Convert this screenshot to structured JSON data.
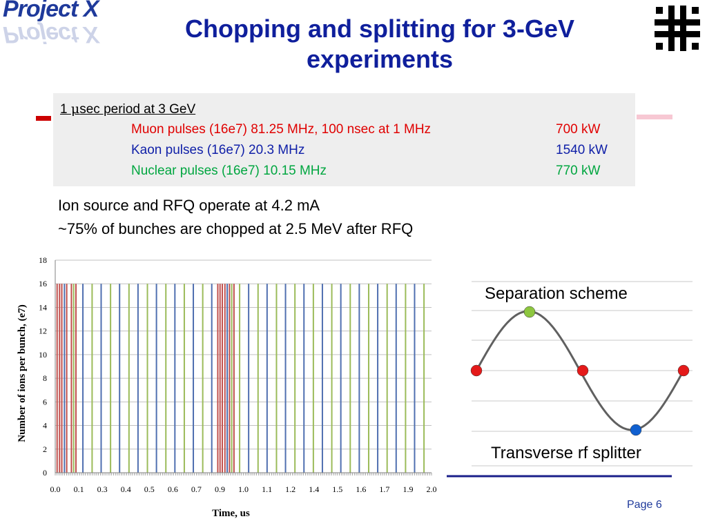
{
  "logo": {
    "text": "Project X",
    "reflection": "Project X"
  },
  "header": {
    "title_line1": "Chopping and splitting for 3-GeV",
    "title_line2": "experiments"
  },
  "info": {
    "header_prefix": "1 ",
    "header_mu": "μ",
    "header_rest": "sec period at 3 GeV",
    "rows": [
      {
        "desc": "Muon pulses (16e7) 81.25 MHz, 100 nsec at 1 MHz",
        "power": "700 kW",
        "color": "#e00000"
      },
      {
        "desc": "Kaon pulses (16e7) 20.3 MHz",
        "power": "1540 kW",
        "color": "#1020a8"
      },
      {
        "desc": "Nuclear pulses (16e7) 10.15 MHz",
        "power": "770 kW",
        "color": "#00a640"
      }
    ]
  },
  "body_text": {
    "line1": "Ion source and RFQ operate at 4.2 mA",
    "line2": "~75% of bunches are chopped at 2.5 MeV after RFQ"
  },
  "chart_data": {
    "type": "bar",
    "xlabel": "Time, us",
    "ylabel": "Number of ions per bunch, (e7)",
    "xlim": [
      0.0,
      2.0
    ],
    "ylim": [
      0,
      18
    ],
    "x_tick_labels": [
      "0.0",
      "0.1",
      "0.3",
      "0.4",
      "0.5",
      "0.6",
      "0.7",
      "0.9",
      "1.0",
      "1.1",
      "1.2",
      "1.4",
      "1.5",
      "1.6",
      "1.7",
      "1.9",
      "2.0"
    ],
    "y_ticks": [
      0,
      2,
      4,
      6,
      8,
      10,
      12,
      14,
      16,
      18
    ],
    "grid": "horizontal",
    "series": [
      {
        "color": "#c0504d",
        "values_per_bunch": 16,
        "x": [
          0.01,
          0.023,
          0.035,
          0.061,
          0.086,
          0.11,
          0.864,
          0.876,
          0.888,
          0.902,
          0.926,
          0.95
        ]
      },
      {
        "color": "#4f6fb0",
        "values_per_bunch": 16,
        "x": [
          0.049,
          0.147,
          0.244,
          0.342,
          0.44,
          0.538,
          0.636,
          0.734,
          0.832,
          0.914,
          1.028,
          1.126,
          1.224,
          1.322,
          1.42,
          1.518,
          1.616,
          1.714,
          1.812,
          1.91
        ]
      },
      {
        "color": "#9bbb59",
        "values_per_bunch": 16,
        "x": [
          0.098,
          0.196,
          0.294,
          0.392,
          0.49,
          0.588,
          0.686,
          0.784,
          0.938,
          0.98,
          1.078,
          1.176,
          1.274,
          1.372,
          1.47,
          1.568,
          1.666,
          1.764,
          1.862,
          1.96
        ]
      }
    ],
    "bar_value": 16
  },
  "diagram": {
    "top_label": "Separation scheme",
    "bottom_label": "Transverse rf splitter",
    "colors": {
      "red": "#e41a1a",
      "green": "#8dc63f",
      "blue": "#1060d0",
      "wave": "#606060"
    }
  },
  "footer": {
    "page_label": "Page 6"
  }
}
